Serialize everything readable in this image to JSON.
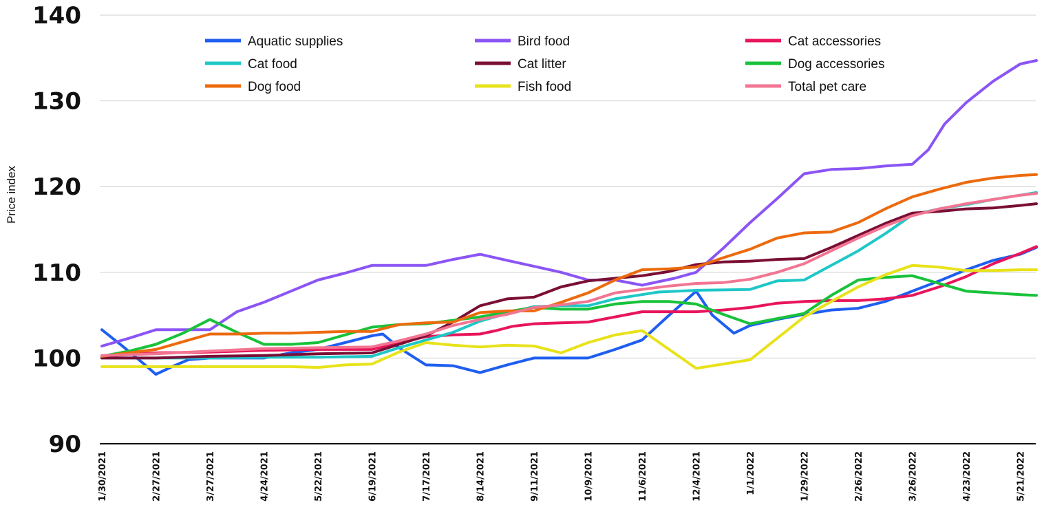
{
  "chart_data": {
    "type": "line",
    "ylabel": "Price index",
    "xlabel": "",
    "ylim": [
      90,
      140
    ],
    "yticks": [
      90,
      100,
      110,
      120,
      130,
      140
    ],
    "grid": true,
    "legend_position": "top",
    "x_tick_labels": [
      "1/30/2021",
      "2/27/2021",
      "3/27/2021",
      "4/24/2021",
      "5/22/2021",
      "6/19/2021",
      "7/17/2021",
      "8/14/2021",
      "9/11/2021",
      "10/9/2021",
      "11/6/2021",
      "12/4/2021",
      "1/1/2022",
      "1/29/2022",
      "2/26/2022",
      "3/26/2022",
      "4/23/2022",
      "5/21/2022"
    ],
    "series": [
      {
        "name": "Aquatic supplies",
        "color": "#1f5ef0",
        "values": [
          [
            0,
            103.3
          ],
          [
            0.4,
            101.3
          ],
          [
            0.8,
            99.2
          ],
          [
            1,
            98.1
          ],
          [
            1.3,
            99.0
          ],
          [
            1.6,
            99.8
          ],
          [
            2,
            100.0
          ],
          [
            2.5,
            100.0
          ],
          [
            3,
            100.0
          ],
          [
            3.5,
            100.6
          ],
          [
            4,
            101.0
          ],
          [
            4.5,
            101.8
          ],
          [
            5,
            102.6
          ],
          [
            5.2,
            102.8
          ],
          [
            5.5,
            101.2
          ],
          [
            5.8,
            100.0
          ],
          [
            6,
            99.2
          ],
          [
            6.5,
            99.1
          ],
          [
            7,
            98.3
          ],
          [
            7.5,
            99.2
          ],
          [
            8,
            100.0
          ],
          [
            8.5,
            100.0
          ],
          [
            9,
            100.0
          ],
          [
            9.5,
            101.0
          ],
          [
            10,
            102.1
          ],
          [
            10.5,
            105.0
          ],
          [
            11,
            107.8
          ],
          [
            11.3,
            105.0
          ],
          [
            11.7,
            102.9
          ],
          [
            12,
            103.8
          ],
          [
            12.5,
            104.5
          ],
          [
            13,
            105.1
          ],
          [
            13.5,
            105.6
          ],
          [
            14,
            105.8
          ],
          [
            14.5,
            106.6
          ],
          [
            15,
            107.8
          ],
          [
            15.5,
            109.0
          ],
          [
            16,
            110.3
          ],
          [
            16.5,
            111.4
          ],
          [
            17,
            112.1
          ],
          [
            17.3,
            112.9
          ]
        ]
      },
      {
        "name": "Bird food",
        "color": "#8b55f5",
        "values": [
          [
            0,
            101.4
          ],
          [
            0.5,
            102.3
          ],
          [
            1,
            103.3
          ],
          [
            1.5,
            103.3
          ],
          [
            2,
            103.3
          ],
          [
            2.5,
            105.4
          ],
          [
            3,
            106.5
          ],
          [
            3.5,
            107.8
          ],
          [
            4,
            109.1
          ],
          [
            4.5,
            109.9
          ],
          [
            5,
            110.8
          ],
          [
            5.5,
            110.8
          ],
          [
            6,
            110.8
          ],
          [
            6.5,
            111.5
          ],
          [
            7,
            112.1
          ],
          [
            7.5,
            111.4
          ],
          [
            8,
            110.7
          ],
          [
            8.5,
            110.0
          ],
          [
            9,
            109.1
          ],
          [
            9.5,
            109.1
          ],
          [
            10,
            108.5
          ],
          [
            10.3,
            108.9
          ],
          [
            10.6,
            109.3
          ],
          [
            11,
            110.0
          ],
          [
            11.5,
            112.8
          ],
          [
            12,
            115.8
          ],
          [
            12.5,
            118.6
          ],
          [
            13,
            121.5
          ],
          [
            13.5,
            122.0
          ],
          [
            14,
            122.1
          ],
          [
            14.5,
            122.4
          ],
          [
            15,
            122.6
          ],
          [
            15.3,
            124.3
          ],
          [
            15.6,
            127.3
          ],
          [
            16,
            129.8
          ],
          [
            16.5,
            132.3
          ],
          [
            17,
            134.3
          ],
          [
            17.3,
            134.7
          ]
        ]
      },
      {
        "name": "Cat accessories",
        "color": "#e8155a",
        "values": [
          [
            0,
            100.2
          ],
          [
            1,
            100.6
          ],
          [
            2,
            100.7
          ],
          [
            3,
            100.9
          ],
          [
            4,
            101.0
          ],
          [
            5,
            101.0
          ],
          [
            5.5,
            101.8
          ],
          [
            6,
            102.5
          ],
          [
            6.5,
            102.7
          ],
          [
            7,
            102.8
          ],
          [
            7.3,
            103.2
          ],
          [
            7.6,
            103.7
          ],
          [
            8,
            104.0
          ],
          [
            8.5,
            104.1
          ],
          [
            9,
            104.2
          ],
          [
            9.5,
            104.8
          ],
          [
            10,
            105.4
          ],
          [
            10.5,
            105.4
          ],
          [
            11,
            105.4
          ],
          [
            11.5,
            105.6
          ],
          [
            12,
            105.9
          ],
          [
            12.5,
            106.4
          ],
          [
            13,
            106.6
          ],
          [
            13.5,
            106.7
          ],
          [
            14,
            106.7
          ],
          [
            14.5,
            106.9
          ],
          [
            15,
            107.3
          ],
          [
            15.5,
            108.3
          ],
          [
            16,
            109.5
          ],
          [
            16.5,
            111.0
          ],
          [
            17,
            112.2
          ],
          [
            17.3,
            113.0
          ]
        ]
      },
      {
        "name": "Cat food",
        "color": "#1fc7c7",
        "values": [
          [
            0,
            100.0
          ],
          [
            1,
            100.0
          ],
          [
            2,
            100.0
          ],
          [
            3,
            100.1
          ],
          [
            4,
            100.1
          ],
          [
            5,
            100.2
          ],
          [
            5.5,
            101.2
          ],
          [
            6,
            102.1
          ],
          [
            6.5,
            103.0
          ],
          [
            7,
            104.3
          ],
          [
            7.5,
            105.2
          ],
          [
            8,
            106.0
          ],
          [
            8.5,
            106.1
          ],
          [
            9,
            106.1
          ],
          [
            9.5,
            106.9
          ],
          [
            10,
            107.4
          ],
          [
            10.3,
            107.7
          ],
          [
            11,
            107.9
          ],
          [
            12,
            108.0
          ],
          [
            12.5,
            109.0
          ],
          [
            13,
            109.1
          ],
          [
            13.5,
            110.8
          ],
          [
            14,
            112.5
          ],
          [
            14.5,
            114.5
          ],
          [
            15,
            116.7
          ],
          [
            15.5,
            117.4
          ],
          [
            16,
            117.9
          ],
          [
            16.5,
            118.5
          ],
          [
            17,
            119.0
          ],
          [
            17.3,
            119.3
          ]
        ]
      },
      {
        "name": "Cat litter",
        "color": "#7a0f35",
        "values": [
          [
            0,
            100.0
          ],
          [
            1,
            100.0
          ],
          [
            2,
            100.2
          ],
          [
            3,
            100.3
          ],
          [
            4,
            100.5
          ],
          [
            5,
            100.6
          ],
          [
            5.5,
            101.6
          ],
          [
            6,
            102.6
          ],
          [
            6.5,
            104.2
          ],
          [
            7,
            106.1
          ],
          [
            7.5,
            106.9
          ],
          [
            8,
            107.1
          ],
          [
            8.5,
            108.3
          ],
          [
            9,
            109.0
          ],
          [
            9.5,
            109.3
          ],
          [
            10,
            109.6
          ],
          [
            10.5,
            110.1
          ],
          [
            11,
            110.9
          ],
          [
            11.5,
            111.2
          ],
          [
            12,
            111.3
          ],
          [
            12.5,
            111.5
          ],
          [
            13,
            111.6
          ],
          [
            13.5,
            112.9
          ],
          [
            14,
            114.3
          ],
          [
            14.5,
            115.7
          ],
          [
            15,
            116.9
          ],
          [
            15.5,
            117.1
          ],
          [
            16,
            117.4
          ],
          [
            16.5,
            117.5
          ],
          [
            17,
            117.8
          ],
          [
            17.3,
            118.0
          ]
        ]
      },
      {
        "name": "Dog accessories",
        "color": "#18c23a",
        "values": [
          [
            0,
            100.2
          ],
          [
            0.5,
            100.8
          ],
          [
            1,
            101.6
          ],
          [
            1.5,
            102.9
          ],
          [
            2,
            104.5
          ],
          [
            2.5,
            103.0
          ],
          [
            3,
            101.6
          ],
          [
            3.5,
            101.6
          ],
          [
            4,
            101.8
          ],
          [
            4.5,
            102.7
          ],
          [
            5,
            103.6
          ],
          [
            5.5,
            103.9
          ],
          [
            6,
            104.0
          ],
          [
            6.5,
            104.4
          ],
          [
            7,
            104.8
          ],
          [
            7.5,
            105.4
          ],
          [
            8,
            105.9
          ],
          [
            8.5,
            105.7
          ],
          [
            9,
            105.7
          ],
          [
            9.5,
            106.3
          ],
          [
            10,
            106.6
          ],
          [
            10.5,
            106.6
          ],
          [
            11,
            106.3
          ],
          [
            11.5,
            105.1
          ],
          [
            12,
            104.0
          ],
          [
            12.5,
            104.6
          ],
          [
            13,
            105.2
          ],
          [
            13.5,
            107.3
          ],
          [
            14,
            109.1
          ],
          [
            14.5,
            109.4
          ],
          [
            15,
            109.6
          ],
          [
            15.5,
            108.7
          ],
          [
            16,
            107.8
          ],
          [
            16.5,
            107.6
          ],
          [
            17,
            107.4
          ],
          [
            17.3,
            107.3
          ]
        ]
      },
      {
        "name": "Dog food",
        "color": "#ec6a0d",
        "values": [
          [
            0,
            100.2
          ],
          [
            0.5,
            100.6
          ],
          [
            1,
            101.0
          ],
          [
            1.5,
            101.9
          ],
          [
            2,
            102.8
          ],
          [
            2.5,
            102.8
          ],
          [
            3,
            102.9
          ],
          [
            3.5,
            102.9
          ],
          [
            4,
            103.0
          ],
          [
            4.5,
            103.1
          ],
          [
            5,
            103.1
          ],
          [
            5.5,
            103.9
          ],
          [
            6,
            104.1
          ],
          [
            6.5,
            104.2
          ],
          [
            7,
            105.3
          ],
          [
            7.5,
            105.5
          ],
          [
            8,
            105.5
          ],
          [
            8.5,
            106.5
          ],
          [
            9,
            107.6
          ],
          [
            9.5,
            109.1
          ],
          [
            10,
            110.3
          ],
          [
            10.5,
            110.4
          ],
          [
            11,
            110.6
          ],
          [
            11.5,
            111.7
          ],
          [
            12,
            112.7
          ],
          [
            12.5,
            114.0
          ],
          [
            13,
            114.6
          ],
          [
            13.5,
            114.7
          ],
          [
            14,
            115.8
          ],
          [
            14.5,
            117.4
          ],
          [
            15,
            118.8
          ],
          [
            15.5,
            119.7
          ],
          [
            16,
            120.5
          ],
          [
            16.5,
            121.0
          ],
          [
            17,
            121.3
          ],
          [
            17.3,
            121.4
          ]
        ]
      },
      {
        "name": "Fish food",
        "color": "#e8e21a",
        "values": [
          [
            0,
            99.0
          ],
          [
            1,
            99.0
          ],
          [
            2,
            99.0
          ],
          [
            3,
            99.0
          ],
          [
            3.5,
            99.0
          ],
          [
            4,
            98.9
          ],
          [
            4.5,
            99.2
          ],
          [
            5,
            99.3
          ],
          [
            5.5,
            100.7
          ],
          [
            6,
            101.8
          ],
          [
            6.5,
            101.5
          ],
          [
            7,
            101.3
          ],
          [
            7.5,
            101.5
          ],
          [
            8,
            101.4
          ],
          [
            8.5,
            100.6
          ],
          [
            9,
            101.8
          ],
          [
            9.5,
            102.7
          ],
          [
            10,
            103.2
          ],
          [
            10.5,
            101.0
          ],
          [
            11,
            98.8
          ],
          [
            11.5,
            99.3
          ],
          [
            12,
            99.8
          ],
          [
            12.5,
            102.3
          ],
          [
            13,
            104.8
          ],
          [
            13.5,
            106.6
          ],
          [
            14,
            108.3
          ],
          [
            14.5,
            109.7
          ],
          [
            15,
            110.8
          ],
          [
            15.5,
            110.6
          ],
          [
            16,
            110.2
          ],
          [
            16.5,
            110.2
          ],
          [
            17,
            110.3
          ],
          [
            17.3,
            110.3
          ]
        ]
      },
      {
        "name": "Total pet care",
        "color": "#f27592",
        "values": [
          [
            0,
            100.3
          ],
          [
            1,
            100.5
          ],
          [
            2,
            100.8
          ],
          [
            3,
            101.1
          ],
          [
            4,
            101.2
          ],
          [
            5,
            101.3
          ],
          [
            5.5,
            102.0
          ],
          [
            6,
            102.8
          ],
          [
            6.5,
            103.8
          ],
          [
            7,
            104.5
          ],
          [
            7.5,
            105.1
          ],
          [
            8,
            105.9
          ],
          [
            8.5,
            106.2
          ],
          [
            9,
            106.6
          ],
          [
            9.5,
            107.6
          ],
          [
            10,
            108.0
          ],
          [
            10.5,
            108.4
          ],
          [
            11,
            108.7
          ],
          [
            11.5,
            108.8
          ],
          [
            12,
            109.2
          ],
          [
            12.5,
            110.0
          ],
          [
            13,
            111.0
          ],
          [
            13.5,
            112.5
          ],
          [
            14,
            114.0
          ],
          [
            14.5,
            115.4
          ],
          [
            15,
            116.6
          ],
          [
            15.5,
            117.4
          ],
          [
            16,
            118.0
          ],
          [
            16.5,
            118.5
          ],
          [
            17,
            119.0
          ],
          [
            17.3,
            119.2
          ]
        ]
      }
    ]
  }
}
